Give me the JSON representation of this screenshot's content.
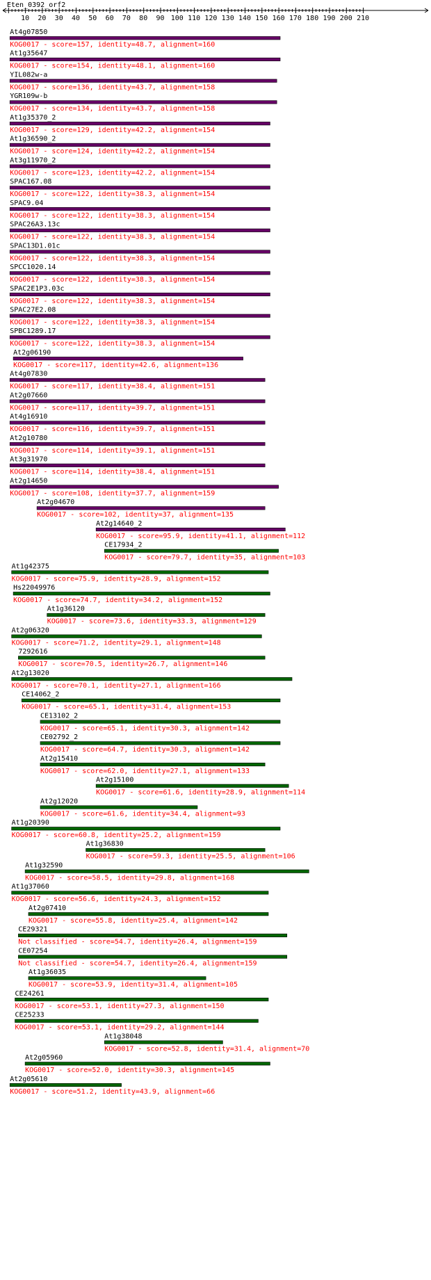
{
  "query": {
    "name": "Eten_0392_orf2",
    "axis_ticks": [
      "10",
      "20",
      "30",
      "40",
      "50",
      "60",
      "70",
      "80",
      "90",
      "100",
      "110",
      "120",
      "130",
      "140",
      "150",
      "160",
      "170",
      "180",
      "190",
      "200",
      "210"
    ]
  },
  "colors": {
    "label": "#000000",
    "description": "#ff0000",
    "bar_purple": "#660066",
    "bar_green": "#006600",
    "axis": "#000000"
  },
  "hits": [
    {
      "name": "At4g07850",
      "desc": "KOG0017 - score=157, identity=48.7, alignment=160",
      "start": 1,
      "end": 161,
      "color": "purple"
    },
    {
      "name": "At1g35647",
      "desc": "KOG0017 - score=154, identity=48.1, alignment=160",
      "start": 1,
      "end": 161,
      "color": "purple"
    },
    {
      "name": "YIL082w-a",
      "desc": "KOG0017 - score=136, identity=43.7, alignment=158",
      "start": 1,
      "end": 159,
      "color": "purple"
    },
    {
      "name": "YGR109w-b",
      "desc": "KOG0017 - score=134, identity=43.7, alignment=158",
      "start": 1,
      "end": 159,
      "color": "purple"
    },
    {
      "name": "At1g35370_2",
      "desc": "KOG0017 - score=129, identity=42.2, alignment=154",
      "start": 1,
      "end": 155,
      "color": "purple"
    },
    {
      "name": "At1g36590_2",
      "desc": "KOG0017 - score=124, identity=42.2, alignment=154",
      "start": 1,
      "end": 155,
      "color": "purple"
    },
    {
      "name": "At3g11970_2",
      "desc": "KOG0017 - score=123, identity=42.2, alignment=154",
      "start": 1,
      "end": 155,
      "color": "purple"
    },
    {
      "name": "SPAC167.08",
      "desc": "KOG0017 - score=122, identity=38.3, alignment=154",
      "start": 1,
      "end": 155,
      "color": "purple"
    },
    {
      "name": "SPAC9.04",
      "desc": "KOG0017 - score=122, identity=38.3, alignment=154",
      "start": 1,
      "end": 155,
      "color": "purple"
    },
    {
      "name": "SPAC26A3.13c",
      "desc": "KOG0017 - score=122, identity=38.3, alignment=154",
      "start": 1,
      "end": 155,
      "color": "purple"
    },
    {
      "name": "SPAC13D1.01c",
      "desc": "KOG0017 - score=122, identity=38.3, alignment=154",
      "start": 1,
      "end": 155,
      "color": "purple"
    },
    {
      "name": "SPCC1020.14",
      "desc": "KOG0017 - score=122, identity=38.3, alignment=154",
      "start": 1,
      "end": 155,
      "color": "purple"
    },
    {
      "name": "SPAC2E1P3.03c",
      "desc": "KOG0017 - score=122, identity=38.3, alignment=154",
      "start": 1,
      "end": 155,
      "color": "purple"
    },
    {
      "name": "SPAC27E2.08",
      "desc": "KOG0017 - score=122, identity=38.3, alignment=154",
      "start": 1,
      "end": 155,
      "color": "purple"
    },
    {
      "name": "SPBC1289.17",
      "desc": "KOG0017 - score=122, identity=38.3, alignment=154",
      "start": 1,
      "end": 155,
      "color": "purple"
    },
    {
      "name": "At2g06190",
      "desc": "KOG0017 - score=117, identity=42.6, alignment=136",
      "start": 3,
      "end": 139,
      "color": "purple"
    },
    {
      "name": "At4g07830",
      "desc": "KOG0017 - score=117, identity=38.4, alignment=151",
      "start": 1,
      "end": 152,
      "color": "purple"
    },
    {
      "name": "At2g07660",
      "desc": "KOG0017 - score=117, identity=39.7, alignment=151",
      "start": 1,
      "end": 152,
      "color": "purple"
    },
    {
      "name": "At4g16910",
      "desc": "KOG0017 - score=116, identity=39.7, alignment=151",
      "start": 1,
      "end": 152,
      "color": "purple"
    },
    {
      "name": "At2g10780",
      "desc": "KOG0017 - score=114, identity=39.1, alignment=151",
      "start": 1,
      "end": 152,
      "color": "purple"
    },
    {
      "name": "At3g31970",
      "desc": "KOG0017 - score=114, identity=38.4, alignment=151",
      "start": 1,
      "end": 152,
      "color": "purple"
    },
    {
      "name": "At2g14650",
      "desc": "KOG0017 - score=108, identity=37.7, alignment=159",
      "start": 1,
      "end": 160,
      "color": "purple"
    },
    {
      "name": "At2g04670",
      "desc": "KOG0017 - score=102, identity=37, alignment=135",
      "start": 17,
      "end": 152,
      "color": "purple"
    },
    {
      "name": "At2g14640_2",
      "desc": "KOG0017 - score=95.9, identity=41.1, alignment=112",
      "start": 52,
      "end": 164,
      "color": "purple"
    },
    {
      "name": "CE17934_2",
      "desc": "KOG0017 - score=79.7, identity=35, alignment=103",
      "start": 57,
      "end": 160,
      "color": "green"
    },
    {
      "name": "At1g42375",
      "desc": "KOG0017 - score=75.9, identity=28.9, alignment=152",
      "start": 2,
      "end": 154,
      "color": "green"
    },
    {
      "name": "Hs22049976",
      "desc": "KOG0017 - score=74.7, identity=34.2, alignment=152",
      "start": 3,
      "end": 155,
      "color": "green"
    },
    {
      "name": "At1g36120",
      "desc": "KOG0017 - score=73.6, identity=33.3, alignment=129",
      "start": 23,
      "end": 152,
      "color": "green"
    },
    {
      "name": "At2g06320",
      "desc": "KOG0017 - score=71.2, identity=29.1, alignment=148",
      "start": 2,
      "end": 150,
      "color": "green"
    },
    {
      "name": "7292616",
      "desc": "KOG0017 - score=70.5, identity=26.7, alignment=146",
      "start": 6,
      "end": 152,
      "color": "green"
    },
    {
      "name": "At2g13020",
      "desc": "KOG0017 - score=70.1, identity=27.1, alignment=166",
      "start": 2,
      "end": 168,
      "color": "green"
    },
    {
      "name": "CE14062_2",
      "desc": "KOG0017 - score=65.1, identity=31.4, alignment=153",
      "start": 8,
      "end": 161,
      "color": "green"
    },
    {
      "name": "CE13102_2",
      "desc": "KOG0017 - score=65.1, identity=30.3, alignment=142",
      "start": 19,
      "end": 161,
      "color": "green"
    },
    {
      "name": "CE02792_2",
      "desc": "KOG0017 - score=64.7, identity=30.3, alignment=142",
      "start": 19,
      "end": 161,
      "color": "green"
    },
    {
      "name": "At2g15410",
      "desc": "KOG0017 - score=62.0, identity=27.1, alignment=133",
      "start": 19,
      "end": 152,
      "color": "green"
    },
    {
      "name": "At2g15100",
      "desc": "KOG0017 - score=61.6, identity=28.9, alignment=114",
      "start": 52,
      "end": 166,
      "color": "green"
    },
    {
      "name": "At2g12020",
      "desc": "KOG0017 - score=61.6, identity=34.4, alignment=93",
      "start": 19,
      "end": 112,
      "color": "green"
    },
    {
      "name": "At1g20390",
      "desc": "KOG0017 - score=60.8, identity=25.2, alignment=159",
      "start": 2,
      "end": 161,
      "color": "green"
    },
    {
      "name": "At1g36830",
      "desc": "KOG0017 - score=59.3, identity=25.5, alignment=106",
      "start": 46,
      "end": 152,
      "color": "green"
    },
    {
      "name": "At1g32590",
      "desc": "KOG0017 - score=58.5, identity=29.8, alignment=168",
      "start": 10,
      "end": 178,
      "color": "green"
    },
    {
      "name": "At1g37060",
      "desc": "KOG0017 - score=56.6, identity=24.3, alignment=152",
      "start": 2,
      "end": 154,
      "color": "green"
    },
    {
      "name": "At2g07410",
      "desc": "KOG0017 - score=55.8, identity=25.4, alignment=142",
      "start": 12,
      "end": 154,
      "color": "green"
    },
    {
      "name": "CE29321",
      "desc": "Not classified - score=54.7, identity=26.4, alignment=159",
      "start": 6,
      "end": 165,
      "color": "green"
    },
    {
      "name": "CE07254",
      "desc": "Not classified - score=54.7, identity=26.4, alignment=159",
      "start": 6,
      "end": 165,
      "color": "green"
    },
    {
      "name": "At1g36035",
      "desc": "KOG0017 - score=53.9, identity=31.4, alignment=105",
      "start": 12,
      "end": 117,
      "color": "green"
    },
    {
      "name": "CE24261",
      "desc": "KOG0017 - score=53.1, identity=27.3, alignment=150",
      "start": 4,
      "end": 154,
      "color": "green"
    },
    {
      "name": "CE25233",
      "desc": "KOG0017 - score=53.1, identity=29.2, alignment=144",
      "start": 4,
      "end": 148,
      "color": "green"
    },
    {
      "name": "At1g38048",
      "desc": "KOG0017 - score=52.8, identity=31.4, alignment=70",
      "start": 57,
      "end": 127,
      "color": "green"
    },
    {
      "name": "At2g05960",
      "desc": "KOG0017 - score=52.0, identity=30.3, alignment=145",
      "start": 10,
      "end": 155,
      "color": "green"
    },
    {
      "name": "At2g05610",
      "desc": "KOG0017 - score=51.2, identity=43.9, alignment=66",
      "start": 1,
      "end": 67,
      "color": "green"
    }
  ]
}
